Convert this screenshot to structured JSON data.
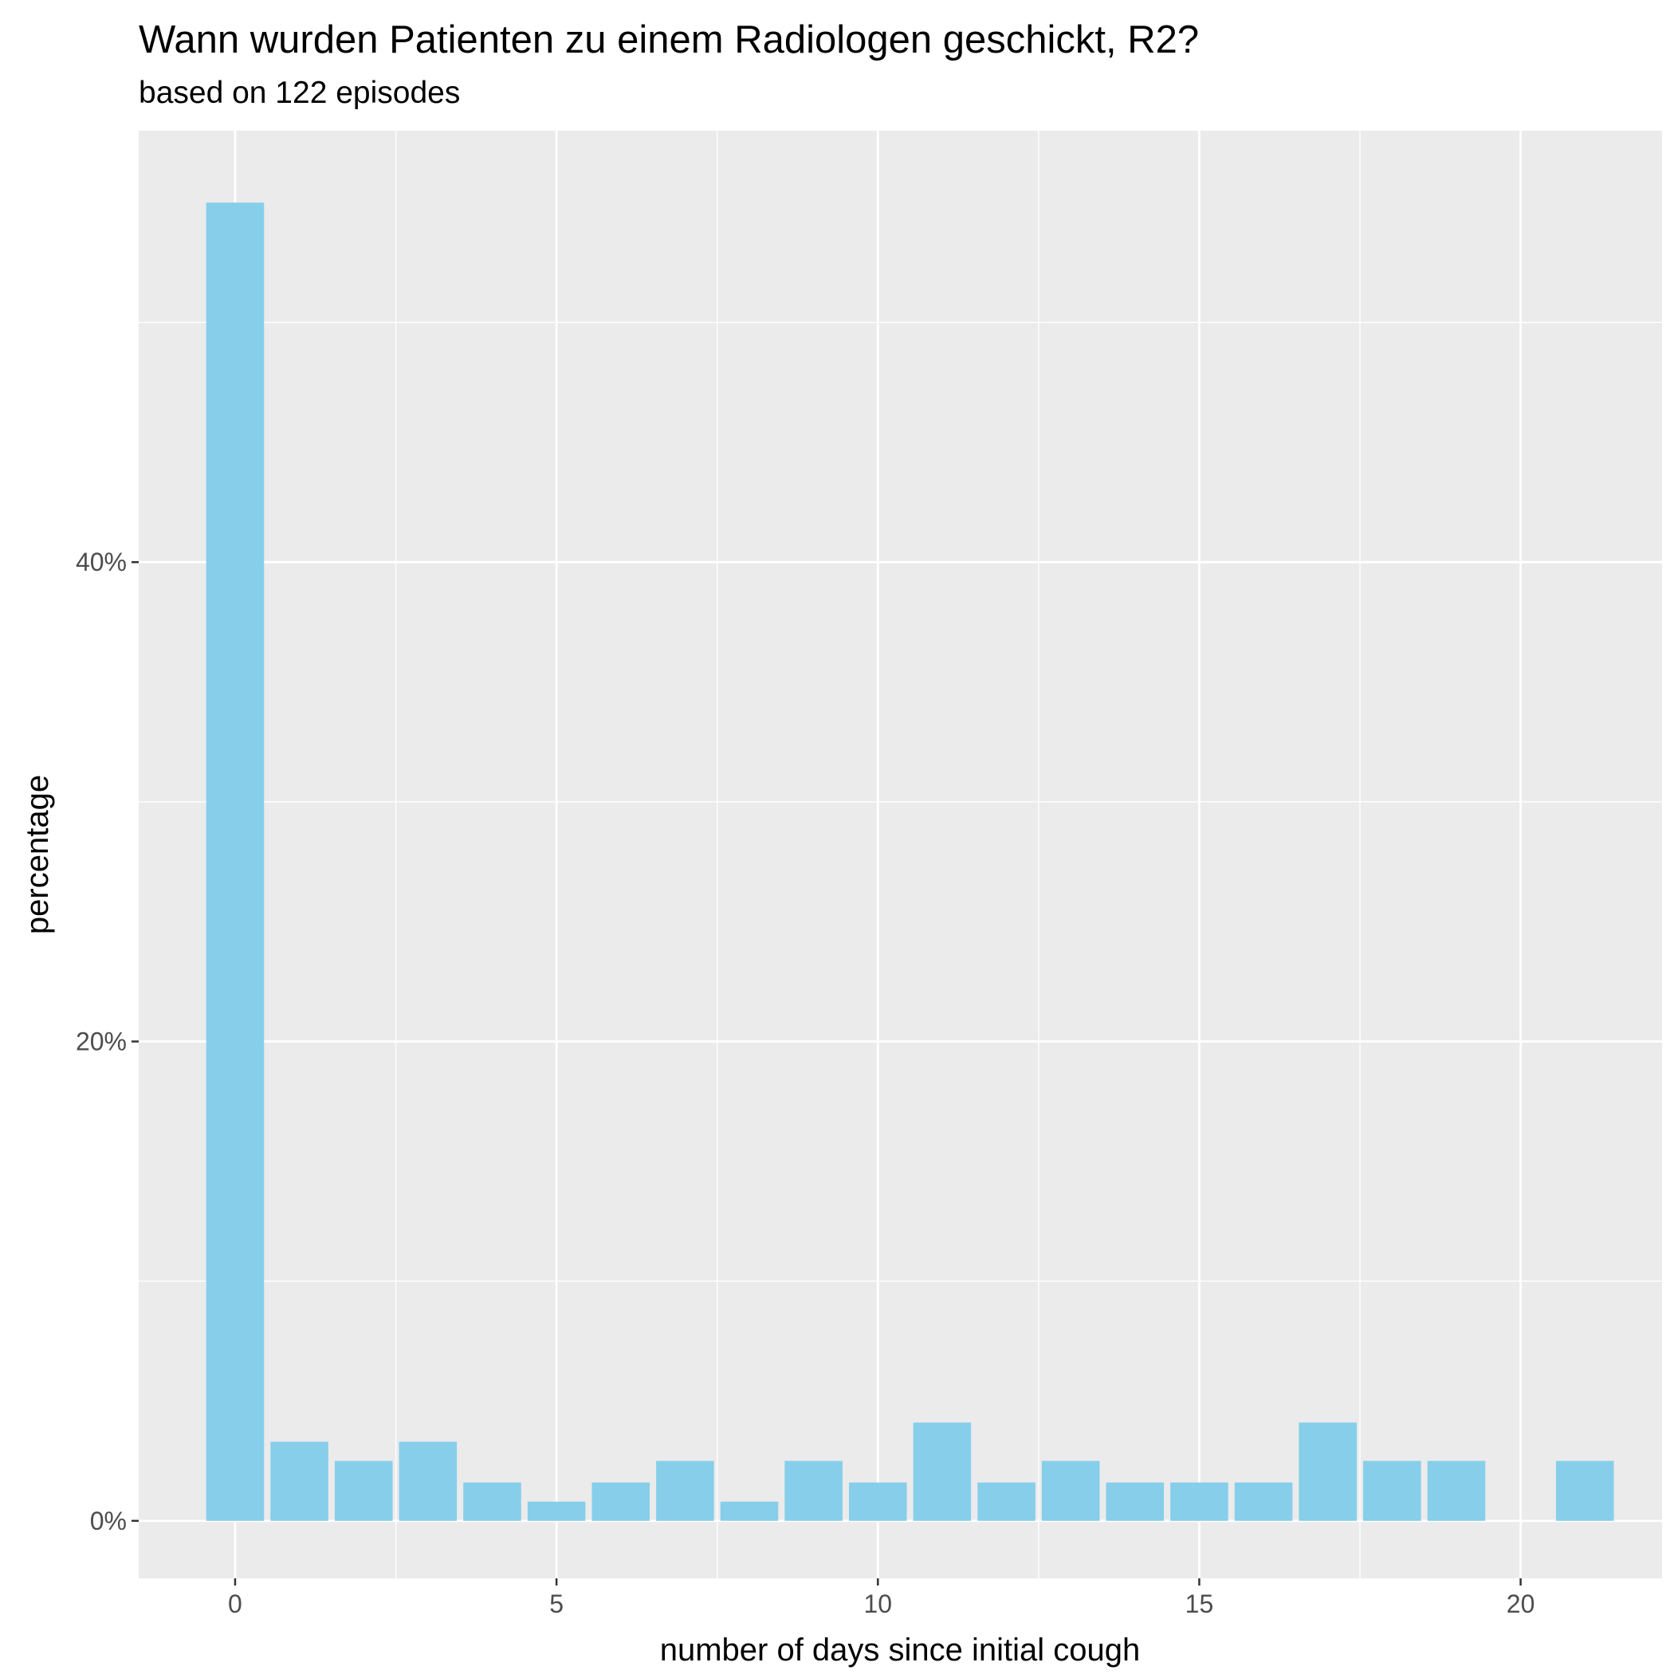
{
  "chart_data": {
    "type": "bar",
    "title": "Wann wurden Patienten zu einem Radiologen geschickt, R2?",
    "subtitle": "based on 122 episodes",
    "xlabel": "number of days since initial cough",
    "ylabel": "percentage",
    "x": [
      0,
      1,
      2,
      3,
      4,
      5,
      6,
      7,
      8,
      9,
      10,
      11,
      12,
      13,
      14,
      15,
      16,
      17,
      18,
      19,
      21
    ],
    "values": [
      55.0,
      3.3,
      2.5,
      3.3,
      1.6,
      0.8,
      1.6,
      2.5,
      0.8,
      2.5,
      1.6,
      4.1,
      1.6,
      2.5,
      1.6,
      1.6,
      1.6,
      4.1,
      2.5,
      2.5,
      2.5
    ],
    "xlim": [
      -1.5,
      22.2
    ],
    "ylim": [
      -2.4,
      58.0
    ],
    "x_ticks": [
      0,
      5,
      10,
      15,
      20
    ],
    "x_tick_labels": [
      "0",
      "5",
      "10",
      "15",
      "20"
    ],
    "y_ticks": [
      0,
      20,
      40
    ],
    "y_tick_labels": [
      "0%",
      "20%",
      "40%"
    ],
    "y_minor_ticks": [
      10,
      30,
      50
    ],
    "grid": true,
    "legend": "none",
    "colors": {
      "bar": "#87ceeb",
      "panel": "#ebebeb",
      "grid": "#ffffff",
      "tick_text": "#4d4d4d",
      "tick_mark": "#333333"
    }
  }
}
